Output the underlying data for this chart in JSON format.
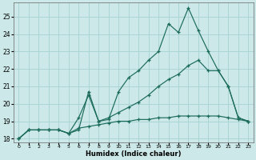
{
  "xlabel": "Humidex (Indice chaleur)",
  "xlim": [
    -0.5,
    23.5
  ],
  "ylim": [
    17.8,
    25.8
  ],
  "yticks": [
    18,
    19,
    20,
    21,
    22,
    23,
    24,
    25
  ],
  "xticks": [
    0,
    1,
    2,
    3,
    4,
    5,
    6,
    7,
    8,
    9,
    10,
    11,
    12,
    13,
    14,
    15,
    16,
    17,
    18,
    19,
    20,
    21,
    22,
    23
  ],
  "bg_color": "#cce8e8",
  "line_color": "#1a6b5a",
  "grid_color": "#aad4d4",
  "line1_x": [
    0,
    1,
    2,
    3,
    4,
    5,
    6,
    7,
    8,
    9,
    10,
    11,
    12,
    13,
    14,
    15,
    16,
    17,
    18,
    19,
    20,
    21,
    22,
    23
  ],
  "line1_y": [
    18.0,
    18.5,
    18.5,
    18.5,
    18.5,
    18.3,
    18.5,
    20.7,
    19.0,
    19.1,
    20.7,
    21.5,
    21.9,
    22.5,
    23.0,
    24.6,
    24.1,
    25.5,
    24.2,
    23.0,
    21.9,
    21.0,
    19.2,
    19.0
  ],
  "line2_x": [
    0,
    1,
    2,
    3,
    4,
    5,
    6,
    7,
    8,
    9,
    10,
    11,
    12,
    13,
    14,
    15,
    16,
    17,
    18,
    19,
    20,
    21,
    22,
    23
  ],
  "line2_y": [
    18.0,
    18.5,
    18.5,
    18.5,
    18.5,
    18.3,
    19.2,
    20.5,
    19.0,
    19.2,
    19.5,
    19.8,
    20.1,
    20.5,
    21.0,
    21.4,
    21.7,
    22.2,
    22.5,
    21.9,
    21.9,
    21.0,
    19.2,
    19.0
  ],
  "line3_x": [
    0,
    1,
    2,
    3,
    4,
    5,
    6,
    7,
    8,
    9,
    10,
    11,
    12,
    13,
    14,
    15,
    16,
    17,
    18,
    19,
    20,
    21,
    22,
    23
  ],
  "line3_y": [
    18.0,
    18.5,
    18.5,
    18.5,
    18.5,
    18.3,
    18.6,
    18.7,
    18.8,
    18.9,
    19.0,
    19.0,
    19.1,
    19.1,
    19.2,
    19.2,
    19.3,
    19.3,
    19.3,
    19.3,
    19.3,
    19.2,
    19.1,
    19.0
  ]
}
